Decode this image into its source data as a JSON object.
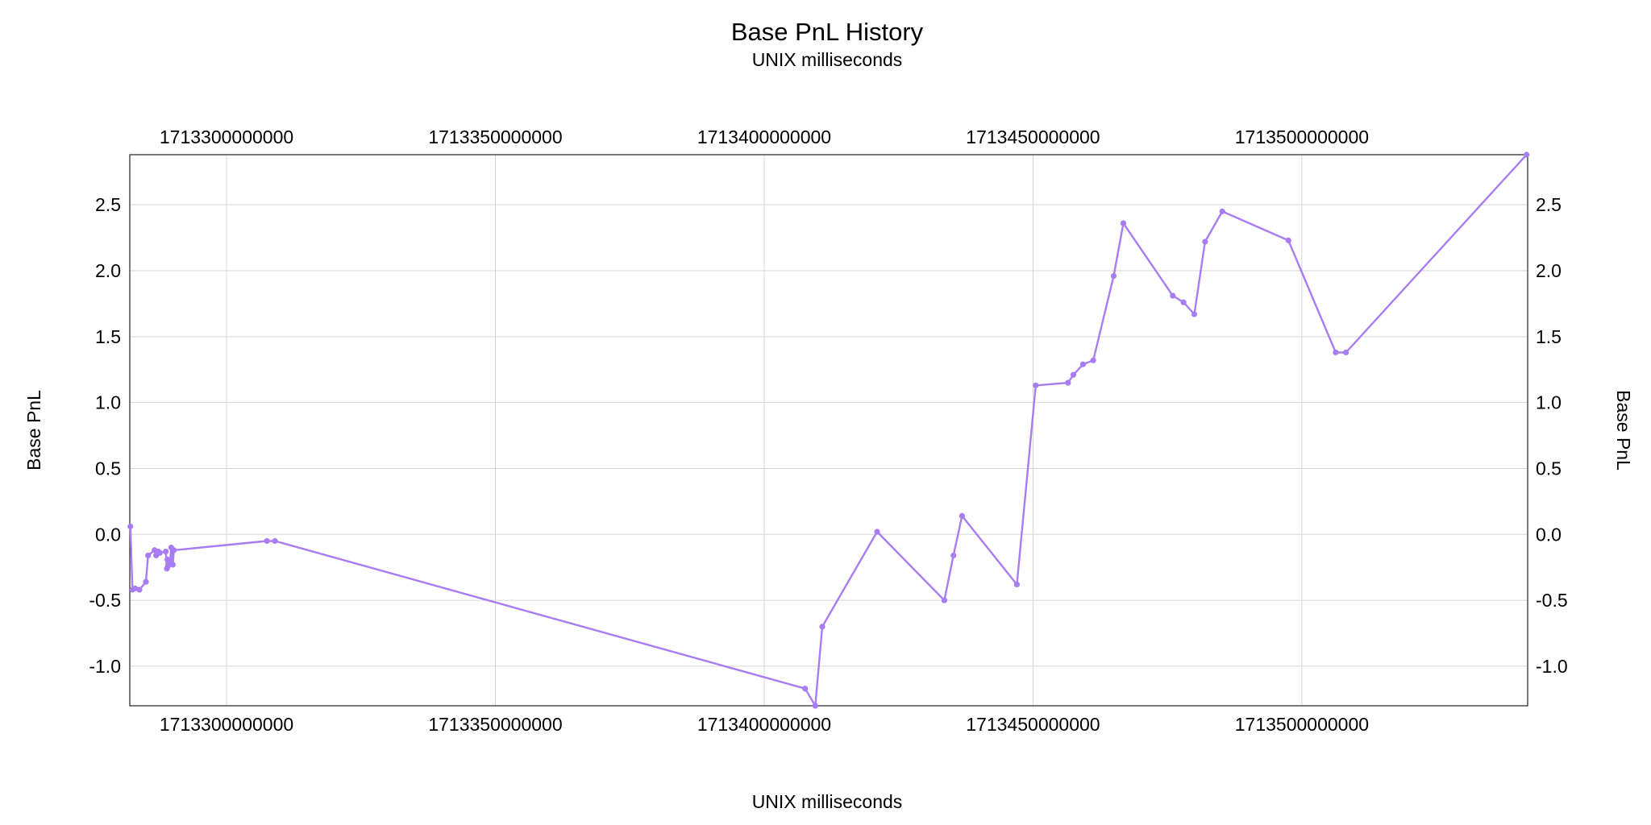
{
  "chart_data": {
    "type": "line",
    "title": "Base PnL History",
    "subtitle": "UNIX milliseconds",
    "xlabel": "UNIX milliseconds",
    "ylabel": "Base PnL",
    "xlim": [
      1713282000000,
      1713542000000
    ],
    "ylim": [
      -1.3,
      2.88
    ],
    "x_ticks": [
      {
        "value": 1713300000000,
        "label": "1713300000000"
      },
      {
        "value": 1713350000000,
        "label": "1713350000000"
      },
      {
        "value": 1713400000000,
        "label": "1713400000000"
      },
      {
        "value": 1713450000000,
        "label": "1713450000000"
      },
      {
        "value": 1713500000000,
        "label": "1713500000000"
      }
    ],
    "y_ticks": [
      {
        "value": -1.0,
        "label": "-1.0"
      },
      {
        "value": -0.5,
        "label": "-0.5"
      },
      {
        "value": 0.0,
        "label": "0.0"
      },
      {
        "value": 0.5,
        "label": "0.5"
      },
      {
        "value": 1.0,
        "label": "1.0"
      },
      {
        "value": 1.5,
        "label": "1.5"
      },
      {
        "value": 2.0,
        "label": "2.0"
      },
      {
        "value": 2.5,
        "label": "2.5"
      }
    ],
    "grid": true,
    "color": "#a87cf2",
    "series": [
      {
        "x": [
          1713282100000,
          1713282500000,
          1713283000000,
          1713283800000,
          1713285000000,
          1713285400000,
          1713286600000,
          1713286900000,
          1713287300000,
          1713287600000,
          1713288700000,
          1713288900000,
          1713289000000,
          1713289100000,
          1713289300000,
          1713289500000,
          1713289700000,
          1713290000000,
          1713290200000,
          1713307500000,
          1713309000000,
          1713407600000,
          1713409500000,
          1713410800000,
          1713421000000,
          1713433500000,
          1713435200000,
          1713436800000,
          1713447000000,
          1713450500000,
          1713456500000,
          1713457500000,
          1713459300000,
          1713461200000,
          1713465000000,
          1713466800000,
          1713476000000,
          1713478000000,
          1713480000000,
          1713482000000,
          1713485200000,
          1713497500000,
          1713506300000,
          1713508200000,
          1713541800000
        ],
        "y": [
          0.06,
          -0.42,
          -0.41,
          -0.42,
          -0.36,
          -0.16,
          -0.12,
          -0.16,
          -0.13,
          -0.14,
          -0.13,
          -0.26,
          -0.19,
          -0.24,
          -0.22,
          -0.2,
          -0.1,
          -0.23,
          -0.12,
          -0.05,
          -0.05,
          -1.17,
          -1.3,
          -0.7,
          0.02,
          -0.5,
          -0.16,
          0.14,
          -0.38,
          1.13,
          1.15,
          1.21,
          1.29,
          1.32,
          1.96,
          2.36,
          1.81,
          1.76,
          1.67,
          2.22,
          2.45,
          2.23,
          1.38,
          1.38,
          2.88
        ]
      }
    ]
  }
}
